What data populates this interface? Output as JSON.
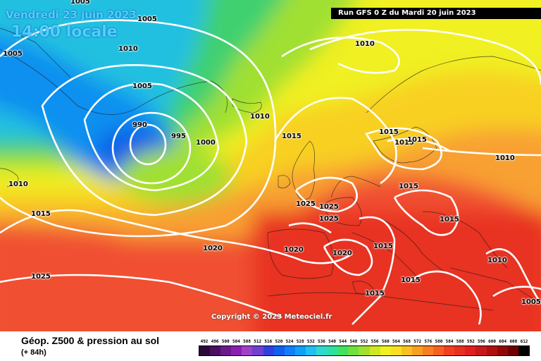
{
  "header": {
    "date": "Vendredi 23 juin 2023",
    "hour": "14:00 locale",
    "run": "Run GFS 0 Z du Mardi 20 juin 2023"
  },
  "pressure_labels": [
    "1005",
    "1005",
    "1010",
    "1005",
    "1005",
    "990",
    "995",
    "1000",
    "1010",
    "1015",
    "1010",
    "1015",
    "1015",
    "1015",
    "1010",
    "1010",
    "1015",
    "1015",
    "1025",
    "1025",
    "1025",
    "1020",
    "1020",
    "1020",
    "1015",
    "1015",
    "1015",
    "1015",
    "1010",
    "1005",
    "1025"
  ],
  "copyright": "Copyright © 2023 Meteociel.fr",
  "legend": {
    "title": "Géop. Z500 & pression au sol",
    "forecast": "(+ 84h)",
    "scale_values": [
      "492",
      "496",
      "500",
      "504",
      "508",
      "512",
      "516",
      "520",
      "524",
      "528",
      "532",
      "536",
      "540",
      "544",
      "548",
      "552",
      "556",
      "560",
      "564",
      "568",
      "572",
      "576",
      "580",
      "584",
      "588",
      "592",
      "596",
      "600",
      "604",
      "608",
      "612"
    ],
    "scale_colors": [
      "#2a0a3a",
      "#4a1060",
      "#6a1a8a",
      "#8a20b0",
      "#a040c8",
      "#7040d0",
      "#3040e0",
      "#1060f0",
      "#1080f8",
      "#10a0f8",
      "#20c0f0",
      "#30d8d0",
      "#30e0a0",
      "#40e060",
      "#70e040",
      "#a0e030",
      "#d0e820",
      "#f0f020",
      "#f8e020",
      "#f8c020",
      "#f8a020",
      "#f88020",
      "#f86020",
      "#f04020",
      "#e83020",
      "#e02020",
      "#c81818",
      "#b01010",
      "#900808",
      "#700000",
      "#000000"
    ]
  }
}
